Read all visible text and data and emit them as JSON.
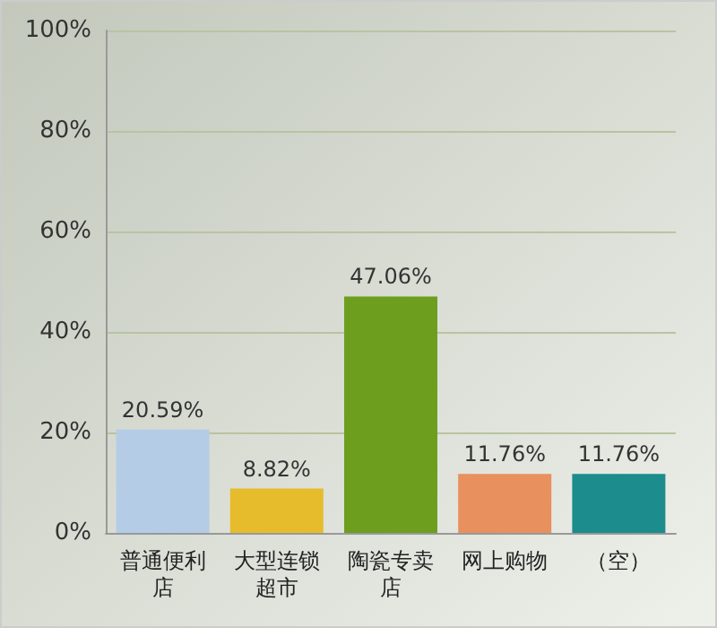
{
  "chart_data": {
    "type": "bar",
    "categories": [
      "普通便利店",
      "大型连锁超市",
      "陶瓷专卖店",
      "网上购物",
      "（空）"
    ],
    "values": [
      20.59,
      8.82,
      47.06,
      11.76,
      11.76
    ],
    "colors": [
      "#b4cce6",
      "#e6bc2c",
      "#6e9e1e",
      "#e8905e",
      "#1c8c8c"
    ],
    "value_labels": [
      "20.59%",
      "8.82%",
      "47.06%",
      "11.76%",
      "11.76%"
    ],
    "ylim": [
      0,
      100
    ],
    "yticks": [
      {
        "value": 0,
        "label": "0%"
      },
      {
        "value": 20,
        "label": "20%"
      },
      {
        "value": 40,
        "label": "40%"
      },
      {
        "value": 60,
        "label": "60%"
      },
      {
        "value": 80,
        "label": "80%"
      },
      {
        "value": 100,
        "label": "100%"
      }
    ],
    "grid": "y"
  }
}
